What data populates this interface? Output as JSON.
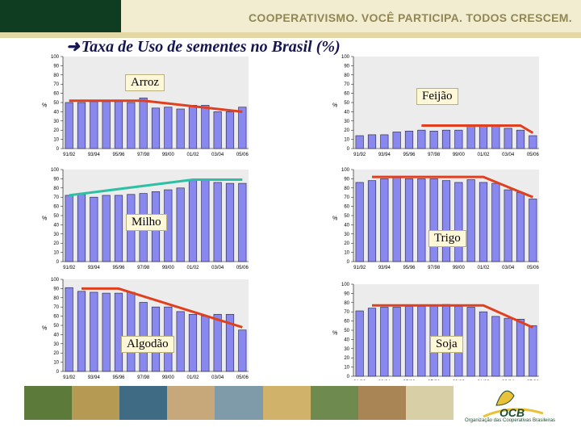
{
  "header": {
    "slogan": "COOPERATIVISMO. VOCÊ PARTICIPA. TODOS CRESCEM.",
    "title": "Taxa de Uso de sementes no Brasil (%)"
  },
  "footer": {
    "logo_text": "OCB",
    "logo_subtitle": "Organização das Cooperativas Brasileiras"
  },
  "colors": {
    "bar_fill": "#8888ee",
    "bar_stroke": "#33335a",
    "plot_bg": "#ececec",
    "trend_red": "#e04020",
    "trend_teal": "#2ec0a4"
  },
  "chart_data": [
    {
      "type": "bar",
      "title": "Arroz",
      "ylabel": "%",
      "ylim": [
        0,
        100
      ],
      "yticks": [
        0,
        10,
        20,
        30,
        40,
        50,
        60,
        70,
        80,
        90,
        100
      ],
      "categories": [
        "91/92",
        "92/93",
        "93/94",
        "94/95",
        "95/96",
        "96/97",
        "97/98",
        "98/99",
        "99/00",
        "00/01",
        "01/02",
        "02/03",
        "03/04",
        "04/05",
        "05/06"
      ],
      "x_labels": [
        "91/92",
        "93/94",
        "95/96",
        "97/98",
        "99/00",
        "01/02",
        "03/04",
        "05/06"
      ],
      "values": [
        50,
        50,
        51,
        51,
        51,
        50,
        55,
        44,
        45,
        43,
        47,
        47,
        40,
        40,
        45
      ],
      "trend": {
        "color": "red",
        "points": [
          [
            0,
            52
          ],
          [
            6,
            52
          ],
          [
            14,
            40
          ]
        ]
      }
    },
    {
      "type": "bar",
      "title": "Feijão",
      "ylabel": "%",
      "ylim": [
        0,
        100
      ],
      "yticks": [
        0,
        10,
        20,
        30,
        40,
        50,
        60,
        70,
        80,
        90,
        100
      ],
      "categories": [
        "91/92",
        "92/93",
        "93/94",
        "94/95",
        "95/96",
        "96/97",
        "97/98",
        "98/99",
        "99/00",
        "00/01",
        "01/02",
        "02/03",
        "03/04",
        "04/05",
        "05/06"
      ],
      "x_labels": [
        "91/92",
        "93/94",
        "95/96",
        "97/98",
        "99/00",
        "01/02",
        "03/04",
        "05/06"
      ],
      "values": [
        14,
        15,
        15,
        18,
        19,
        20,
        19,
        20,
        20,
        25,
        25,
        25,
        22,
        20,
        14
      ],
      "trend": {
        "color": "red",
        "points": [
          [
            5,
            25
          ],
          [
            13,
            25
          ],
          [
            14,
            17
          ]
        ]
      }
    },
    {
      "type": "bar",
      "title": "Milho",
      "ylabel": "%",
      "ylim": [
        0,
        100
      ],
      "yticks": [
        0,
        10,
        20,
        30,
        40,
        50,
        60,
        70,
        80,
        90,
        100
      ],
      "categories": [
        "91/92",
        "92/93",
        "93/94",
        "94/95",
        "95/96",
        "96/97",
        "97/98",
        "98/99",
        "99/00",
        "00/01",
        "01/02",
        "02/03",
        "03/04",
        "04/05",
        "05/06"
      ],
      "x_labels": [
        "91/92",
        "93/94",
        "95/96",
        "97/98",
        "99/00",
        "01/02",
        "03/04",
        "05/06"
      ],
      "values": [
        72,
        73,
        70,
        72,
        72,
        73,
        74,
        76,
        78,
        80,
        88,
        88,
        86,
        85,
        85
      ],
      "trend": {
        "color": "teal",
        "points": [
          [
            0,
            72
          ],
          [
            10,
            89
          ],
          [
            14,
            89
          ]
        ]
      }
    },
    {
      "type": "bar",
      "title": "Trigo",
      "ylabel": "%",
      "ylim": [
        0,
        100
      ],
      "yticks": [
        0,
        10,
        20,
        30,
        40,
        50,
        60,
        70,
        80,
        90,
        100
      ],
      "categories": [
        "91/92",
        "92/93",
        "93/94",
        "94/95",
        "95/96",
        "96/97",
        "97/98",
        "98/99",
        "99/00",
        "00/01",
        "01/02",
        "02/03",
        "03/04",
        "04/05",
        "05/06"
      ],
      "x_labels": [
        "91/92",
        "93/94",
        "95/96",
        "97/98",
        "99/00",
        "01/02",
        "03/04",
        "05/06"
      ],
      "values": [
        86,
        88,
        90,
        92,
        90,
        90,
        90,
        88,
        86,
        89,
        86,
        85,
        78,
        75,
        68
      ],
      "trend": {
        "color": "red",
        "points": [
          [
            1,
            92
          ],
          [
            10,
            92
          ],
          [
            14,
            70
          ]
        ]
      }
    },
    {
      "type": "bar",
      "title": "Algodão",
      "ylabel": "%",
      "ylim": [
        0,
        100
      ],
      "yticks": [
        0,
        10,
        20,
        30,
        40,
        50,
        60,
        70,
        80,
        90,
        100
      ],
      "categories": [
        "91/92",
        "92/93",
        "93/94",
        "94/95",
        "95/96",
        "96/97",
        "97/98",
        "98/99",
        "99/00",
        "00/01",
        "01/02",
        "02/03",
        "03/04",
        "04/05",
        "05/06"
      ],
      "x_labels": [
        "91/92",
        "93/94",
        "95/96",
        "97/98",
        "99/00",
        "01/02",
        "03/04",
        "05/06"
      ],
      "values": [
        91,
        87,
        86,
        85,
        85,
        86,
        75,
        70,
        70,
        65,
        62,
        60,
        62,
        62,
        45
      ],
      "trend": {
        "color": "red",
        "points": [
          [
            1,
            90
          ],
          [
            4,
            90
          ],
          [
            14,
            48
          ]
        ]
      }
    },
    {
      "type": "bar",
      "title": "Soja",
      "ylabel": "%",
      "ylim": [
        0,
        100
      ],
      "yticks": [
        0,
        10,
        20,
        30,
        40,
        50,
        60,
        70,
        80,
        90,
        100
      ],
      "categories": [
        "91/92",
        "92/93",
        "93/94",
        "94/95",
        "95/96",
        "96/97",
        "97/98",
        "98/99",
        "99/00",
        "00/01",
        "01/02",
        "02/03",
        "03/04",
        "04/05",
        "05/06"
      ],
      "x_labels": [
        "91/92",
        "93/94",
        "95/96",
        "97/98",
        "99/00",
        "01/02",
        "03/04",
        "05/06"
      ],
      "values": [
        71,
        74,
        75,
        75,
        76,
        76,
        77,
        78,
        76,
        75,
        70,
        65,
        63,
        62,
        55
      ],
      "trend": {
        "color": "red",
        "points": [
          [
            1,
            77
          ],
          [
            10,
            77
          ],
          [
            14,
            53
          ]
        ]
      }
    }
  ]
}
